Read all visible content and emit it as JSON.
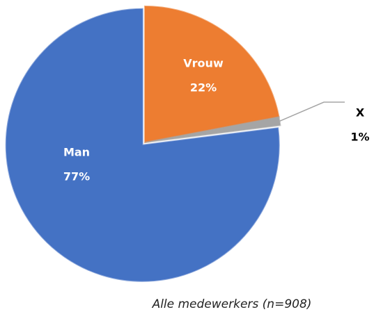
{
  "chart_data": {
    "type": "pie",
    "title": "Alle medewerkers (n=908)",
    "categories": [
      "Vrouw",
      "X",
      "Man"
    ],
    "values": [
      22,
      1,
      77
    ],
    "value_labels": [
      "22%",
      "1%",
      "77%"
    ],
    "colors": [
      "#ed7d31",
      "#a5a5a5",
      "#4472c4"
    ]
  }
}
